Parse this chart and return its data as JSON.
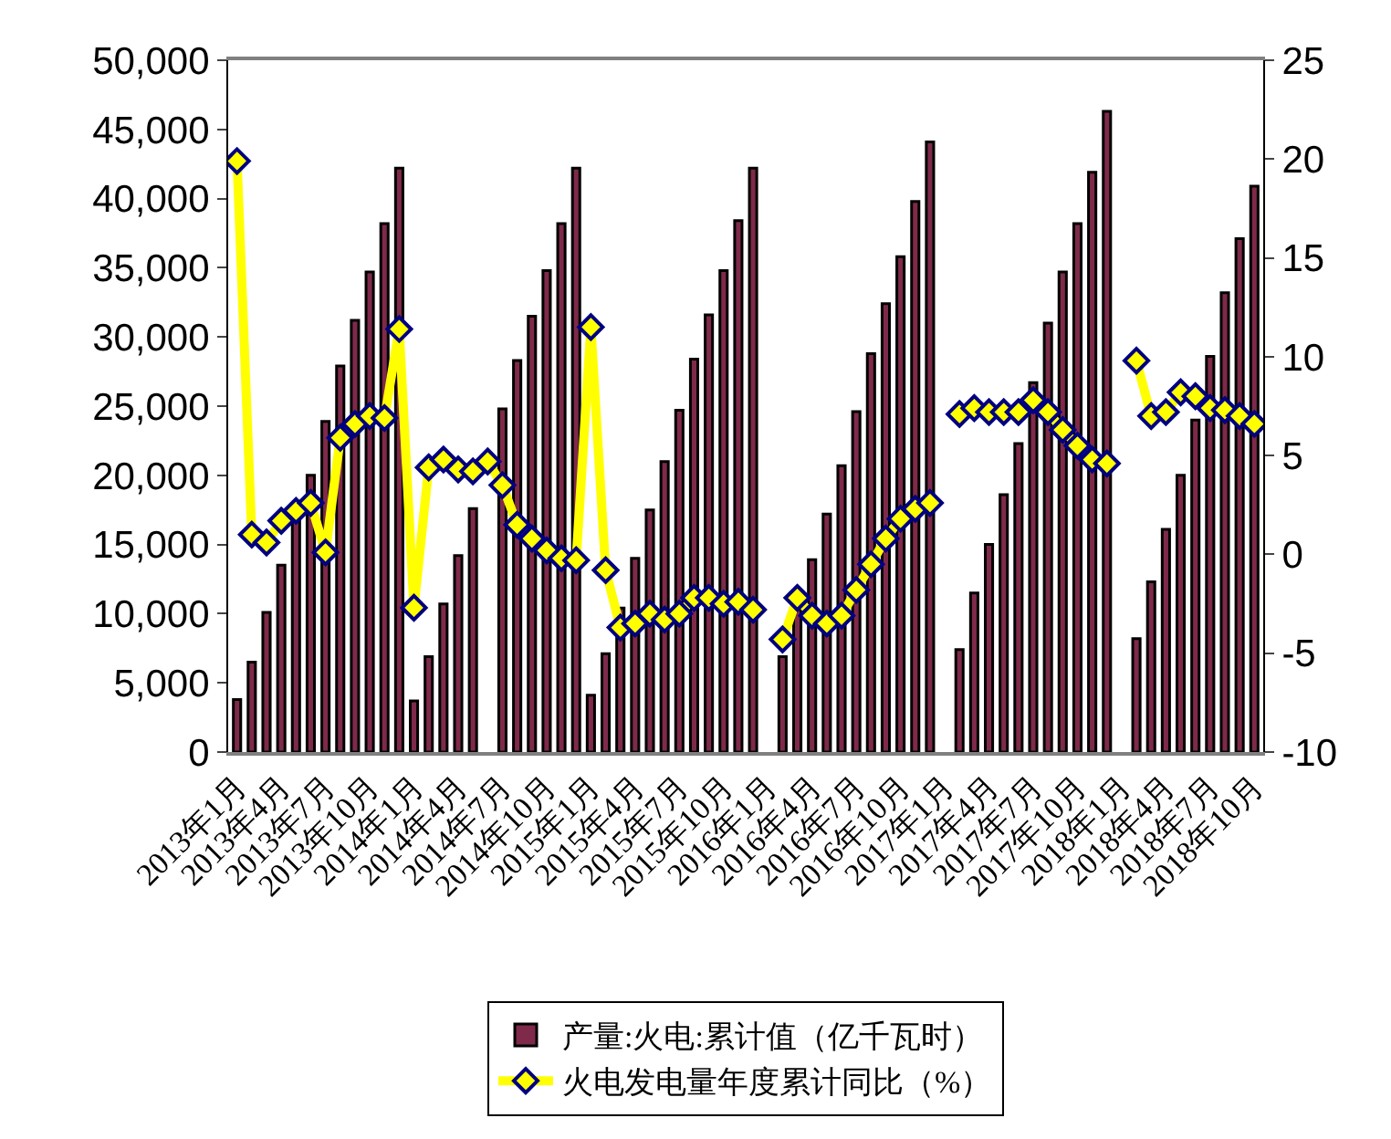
{
  "chart_data": {
    "type": "bar",
    "categories": [
      "2013年1月",
      null,
      null,
      "2013年4月",
      null,
      null,
      "2013年7月",
      null,
      null,
      "2013年10月",
      null,
      null,
      "2014年1月",
      null,
      null,
      "2014年4月",
      null,
      null,
      "2014年7月",
      null,
      null,
      "2014年10月",
      null,
      null,
      "2015年1月",
      null,
      null,
      "2015年4月",
      null,
      null,
      "2015年7月",
      null,
      null,
      "2015年10月",
      null,
      null,
      "2016年1月",
      null,
      null,
      "2016年4月",
      null,
      null,
      "2016年7月",
      null,
      null,
      "2016年10月",
      null,
      null,
      "2017年1月",
      null,
      null,
      "2017年4月",
      null,
      null,
      "2017年7月",
      null,
      null,
      "2017年10月",
      null,
      null,
      "2018年1月",
      null,
      null,
      "2018年4月",
      null,
      null,
      "2018年7月",
      null,
      null,
      "2018年10月"
    ],
    "series": [
      {
        "name": "产量:火电:累计值（亿千瓦时）",
        "color": "#7f2a4a",
        "values": [
          3800,
          6500,
          10100,
          13500,
          16800,
          20000,
          23900,
          27900,
          31200,
          34700,
          38200,
          42200,
          3700,
          6900,
          10700,
          14200,
          17600,
          null,
          24800,
          28300,
          31500,
          34800,
          38200,
          42200,
          4100,
          7100,
          10400,
          14000,
          17500,
          21000,
          24700,
          28400,
          31600,
          34800,
          38400,
          42200,
          null,
          6900,
          10300,
          13900,
          17200,
          20700,
          24600,
          28800,
          32400,
          35800,
          39800,
          44100,
          null,
          7400,
          11500,
          15000,
          18600,
          22300,
          26700,
          31000,
          34700,
          38200,
          41900,
          46300,
          null,
          8200,
          12300,
          16100,
          20000,
          24000,
          28600,
          33200,
          37100,
          40900
        ]
      },
      {
        "name": "火电发电量年度累计同比（%）",
        "type": "line",
        "axis": "y2",
        "color": "#ffff00",
        "marker": "diamond",
        "line_style": "solid",
        "values": [
          19.9,
          1.0,
          0.6,
          1.7,
          2.2,
          2.6,
          0.1,
          5.9,
          6.6,
          7.0,
          6.9,
          11.4,
          -2.7,
          4.4,
          4.8,
          4.3,
          4.2,
          4.7,
          3.5,
          1.5,
          0.8,
          0.2,
          -0.2,
          -0.3,
          11.5,
          -0.8,
          -3.7,
          -3.5,
          -3.0,
          -3.3,
          -3.0,
          -2.2,
          -2.2,
          -2.5,
          -2.4,
          -2.8,
          null,
          -4.3,
          -2.2,
          -3.1,
          -3.5,
          -3.1,
          -1.8,
          -0.5,
          0.8,
          1.8,
          2.3,
          2.6,
          null,
          7.1,
          7.4,
          7.2,
          7.2,
          7.2,
          7.8,
          7.2,
          6.3,
          5.5,
          4.8,
          4.6,
          null,
          9.8,
          7.0,
          7.2,
          8.2,
          8.0,
          7.4,
          7.3,
          7.0,
          6.6
        ]
      }
    ],
    "ylim": [
      0,
      50000
    ],
    "yticks": [
      0,
      {
        "value": 5000,
        "label": "5,000"
      },
      {
        "value": 10000,
        "label": "10,000"
      },
      {
        "value": 15000,
        "label": "15,000"
      },
      {
        "value": 20000,
        "label": "20,000"
      },
      {
        "value": 25000,
        "label": "25,000"
      },
      {
        "value": 30000,
        "label": "30,000"
      },
      {
        "value": 35000,
        "label": "35,000"
      },
      {
        "value": 40000,
        "label": "40,000"
      },
      {
        "value": 45000,
        "label": "45,000"
      },
      {
        "value": 50000,
        "label": "50,000"
      }
    ],
    "y2lim": [
      -10,
      25
    ],
    "y2ticks": [
      -10,
      -5,
      0,
      5,
      10,
      15,
      20,
      25
    ],
    "legend": "bottom"
  }
}
